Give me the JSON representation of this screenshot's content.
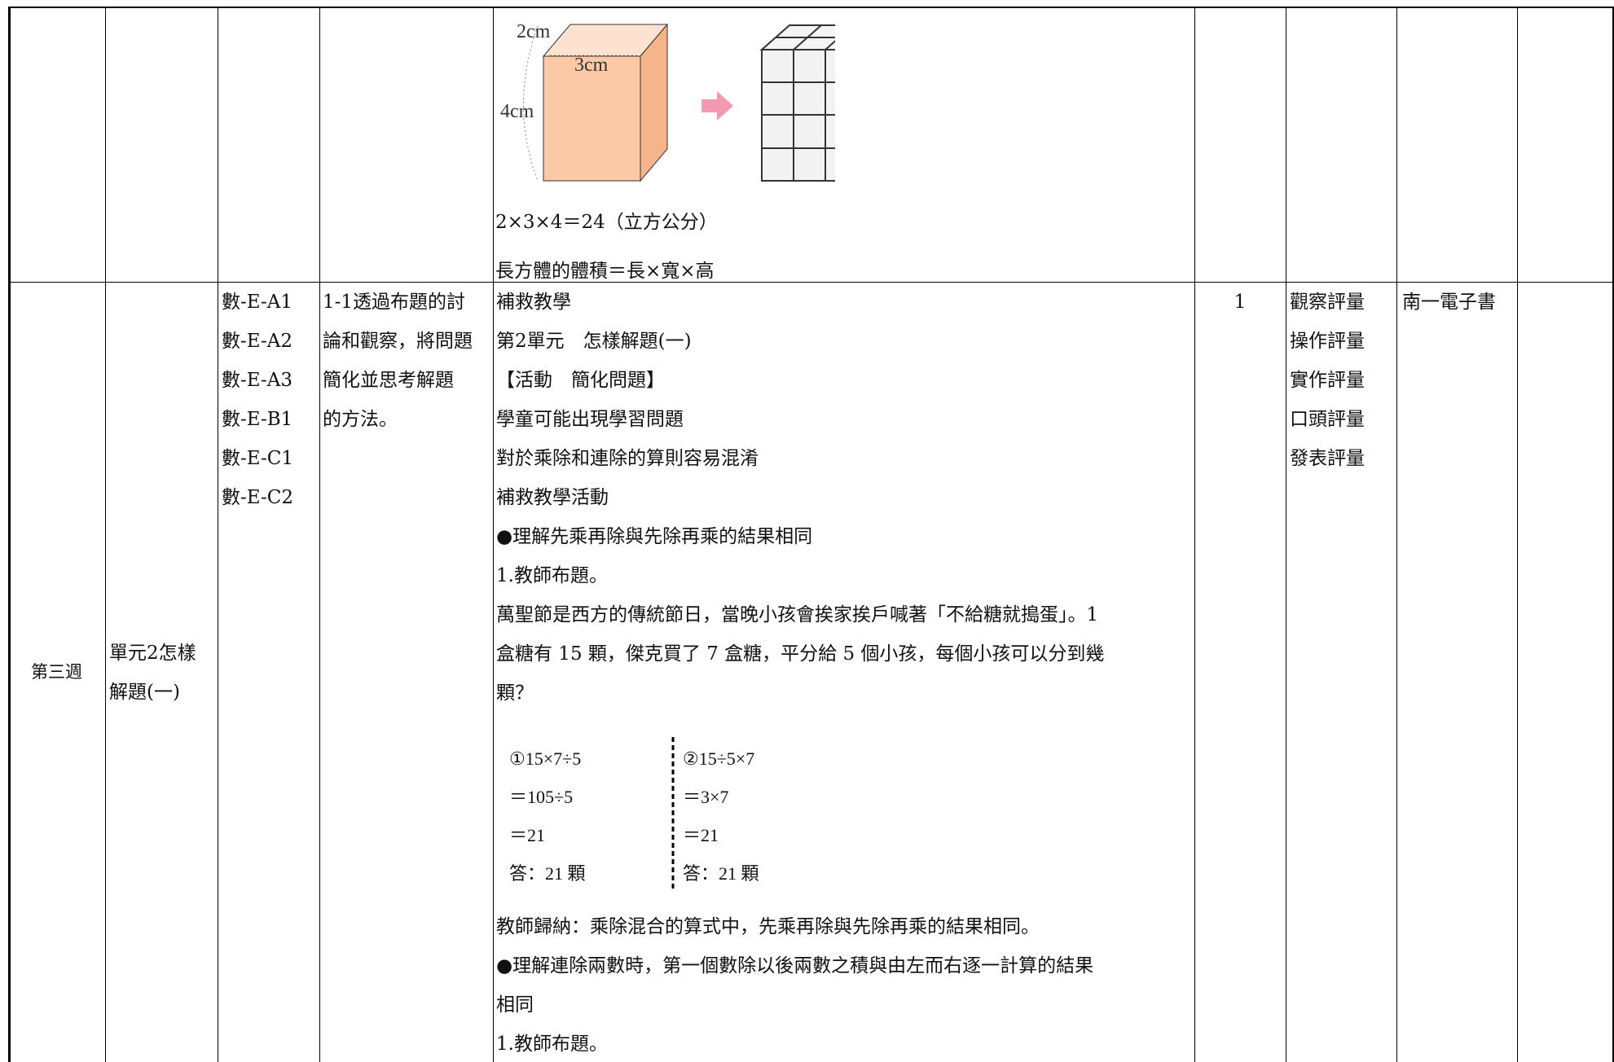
{
  "table": {
    "rows": [
      {
        "figure": {
          "labels": [
            "2cm",
            "3cm",
            "4cm"
          ]
        },
        "content": [
          "2×3×4＝24（立方公分）",
          "長方體的體積＝長×寬×高"
        ]
      },
      {
        "week": "第三週",
        "unit": [
          "單元2怎樣",
          "解題(一)"
        ],
        "competencies": [
          "數-E-A1",
          "數-E-A2",
          "數-E-A3",
          "數-E-B1",
          "數-E-C1",
          "數-E-C2"
        ],
        "objectives": [
          "1-1透過布題的討",
          "論和觀察，將問題",
          "簡化並思考解題",
          "的方法。"
        ],
        "content": [
          "補救教學",
          "第2單元　怎樣解題(一)",
          "【活動　簡化問題】",
          "學童可能出現學習問題",
          "對於乘除和連除的算則容易混淆",
          "補救教學活動",
          "●理解先乘再除與先除再乘的結果相同",
          "1.教師布題。",
          "萬聖節是西方的傳統節日，當晚小孩會挨家挨戶喊著「不給糖就搗蛋」。1",
          "盒糖有 15 顆，傑克買了 7 盒糖，平分給 5 個小孩，每個小孩可以分到幾",
          "顆？"
        ],
        "calc": [
          [
            "①15×7÷5",
            "＝105÷5",
            "＝21",
            "答：21 顆"
          ],
          [
            "②15÷5×7",
            "＝3×7",
            "＝21",
            "答：21 顆"
          ]
        ],
        "content_after": [
          "教師歸納：乘除混合的算式中，先乘再除與先除再乘的結果相同。",
          "●理解連除兩數時，第一個數除以後兩數之積與由左而右逐一計算的結果",
          "相同",
          "1.教師布題。"
        ],
        "hours": "1",
        "assessment": [
          "觀察評量",
          "操作評量",
          "實作評量",
          "口頭評量",
          "發表評量"
        ],
        "resources": "南一電子書"
      }
    ]
  }
}
